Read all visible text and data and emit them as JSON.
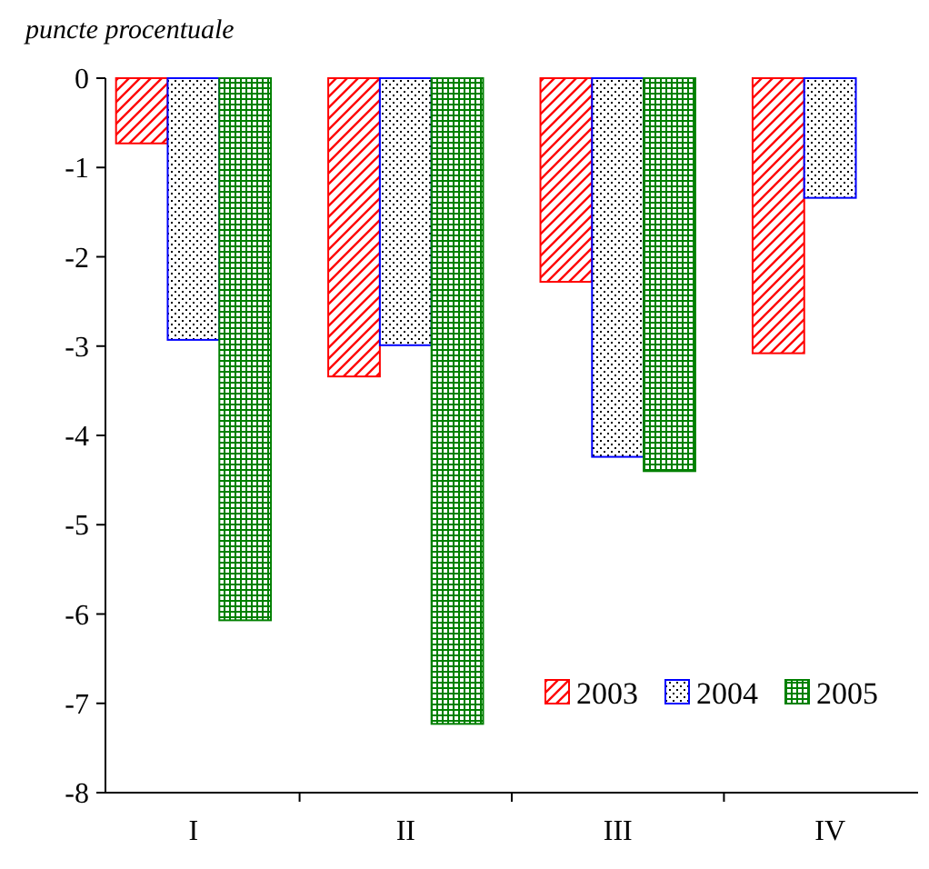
{
  "chart_data": {
    "type": "bar",
    "ylabel": "puncte procentuale",
    "categories": [
      "I",
      "II",
      "III",
      "IV"
    ],
    "series": [
      {
        "name": "2003",
        "color": "#ff0000",
        "values": [
          -0.73,
          -3.34,
          -2.28,
          -3.08
        ]
      },
      {
        "name": "2004",
        "color": "#0000ff",
        "values": [
          -2.93,
          -2.99,
          -4.24,
          -1.34
        ]
      },
      {
        "name": "2005",
        "color": "#008000",
        "values": [
          -6.07,
          -7.23,
          -4.4,
          null
        ]
      }
    ],
    "ylim": [
      -8,
      0
    ],
    "yticks": [
      -8,
      -7,
      -6,
      -5,
      -4,
      -3,
      -2,
      -1,
      0
    ],
    "grid": false,
    "legend": "bottom right"
  }
}
